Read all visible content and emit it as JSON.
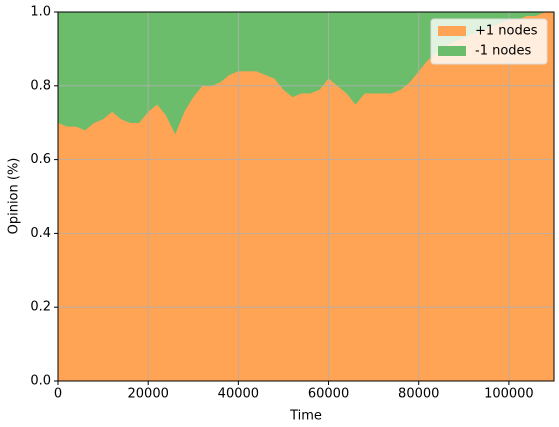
{
  "chart_data": {
    "type": "stacked_area",
    "xlabel": "Time",
    "ylabel": "Opinion (%)",
    "x": [
      0,
      2000,
      4000,
      6000,
      8000,
      10000,
      12000,
      14000,
      16000,
      18000,
      20000,
      22000,
      24000,
      26000,
      28000,
      30000,
      32000,
      34000,
      36000,
      38000,
      40000,
      42000,
      44000,
      46000,
      48000,
      50000,
      52000,
      54000,
      56000,
      58000,
      60000,
      62000,
      64000,
      66000,
      68000,
      70000,
      72000,
      74000,
      76000,
      78000,
      80000,
      82000,
      84000,
      86000,
      88000,
      90000,
      92000,
      94000,
      96000,
      98000,
      100000,
      102000,
      104000,
      106000,
      108000,
      110000
    ],
    "series": [
      {
        "name": "+1 nodes",
        "color": "#ffa354",
        "values": [
          0.7,
          0.69,
          0.69,
          0.68,
          0.7,
          0.71,
          0.73,
          0.71,
          0.7,
          0.7,
          0.73,
          0.75,
          0.72,
          0.67,
          0.73,
          0.77,
          0.8,
          0.8,
          0.81,
          0.83,
          0.84,
          0.84,
          0.84,
          0.83,
          0.82,
          0.79,
          0.77,
          0.78,
          0.78,
          0.79,
          0.82,
          0.8,
          0.78,
          0.75,
          0.78,
          0.78,
          0.78,
          0.78,
          0.79,
          0.81,
          0.84,
          0.87,
          0.89,
          0.91,
          0.92,
          0.93,
          0.94,
          0.95,
          0.96,
          0.97,
          0.98,
          0.98,
          0.99,
          0.99,
          1.0,
          1.0
        ]
      },
      {
        "name": "-1 nodes",
        "color": "#6bbd6b",
        "values": [
          0.3,
          0.31,
          0.31,
          0.32,
          0.3,
          0.29,
          0.27,
          0.29,
          0.3,
          0.3,
          0.27,
          0.25,
          0.28,
          0.33,
          0.27,
          0.23,
          0.2,
          0.2,
          0.19,
          0.17,
          0.16,
          0.16,
          0.16,
          0.17,
          0.18,
          0.21,
          0.23,
          0.22,
          0.22,
          0.21,
          0.18,
          0.2,
          0.22,
          0.25,
          0.22,
          0.22,
          0.22,
          0.22,
          0.21,
          0.19,
          0.16,
          0.13,
          0.11,
          0.09,
          0.08,
          0.07,
          0.06,
          0.05,
          0.04,
          0.03,
          0.02,
          0.02,
          0.01,
          0.01,
          0,
          0
        ]
      }
    ],
    "xlim": [
      0,
      110000
    ],
    "xticks": [
      0,
      20000,
      40000,
      60000,
      80000,
      100000
    ],
    "ylim": [
      0,
      1
    ],
    "yticks": [
      {
        "value": 0,
        "label": "0.0"
      },
      0.2,
      0.4,
      0.6,
      0.8,
      {
        "value": 1,
        "label": "1.0"
      }
    ],
    "grid": true,
    "legend": "upper right"
  }
}
